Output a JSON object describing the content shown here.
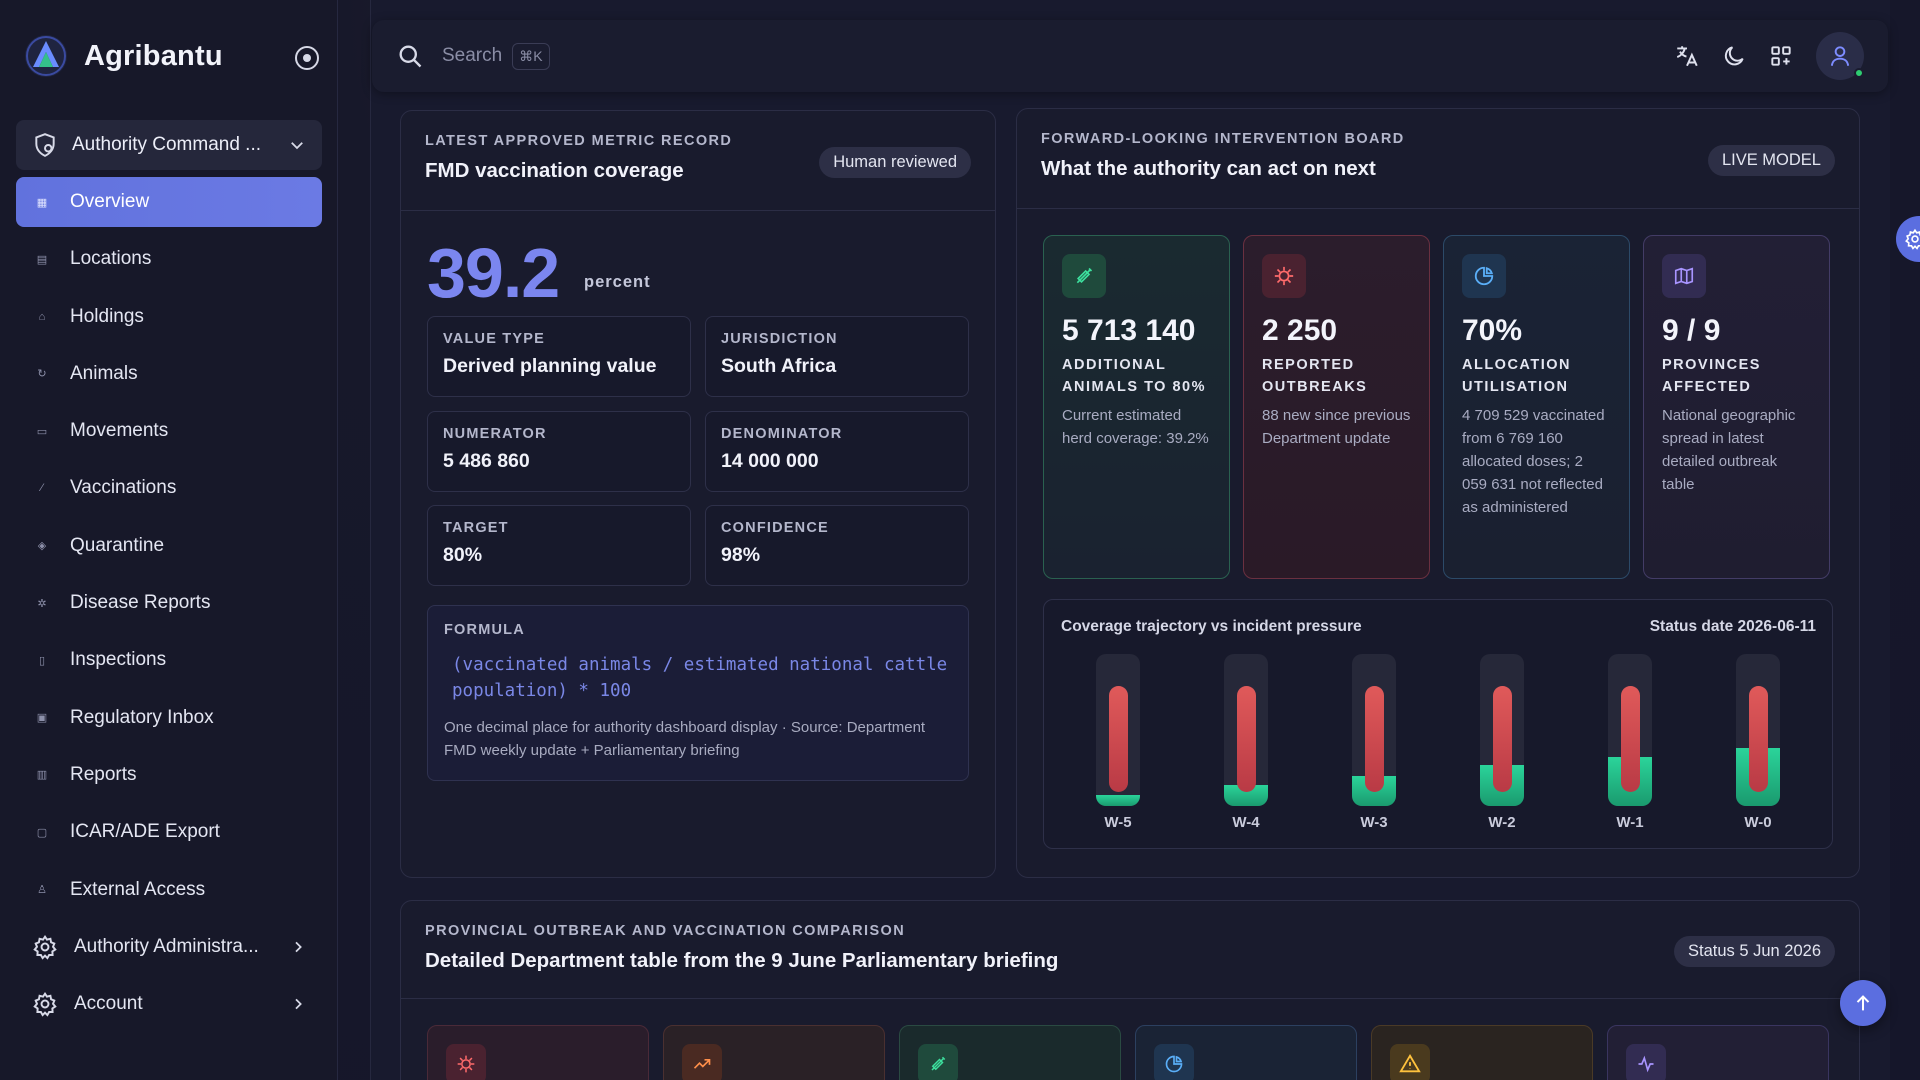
{
  "brand": {
    "name": "Agribantu"
  },
  "sidebar": {
    "command_select": "Authority Command ...",
    "items": [
      {
        "label": "Overview",
        "icon": "grid-icon",
        "active": true
      },
      {
        "label": "Locations",
        "icon": "map-icon"
      },
      {
        "label": "Holdings",
        "icon": "home-icon"
      },
      {
        "label": "Animals",
        "icon": "refresh-icon"
      },
      {
        "label": "Movements",
        "icon": "truck-icon"
      },
      {
        "label": "Vaccinations",
        "icon": "syringe-icon"
      },
      {
        "label": "Quarantine",
        "icon": "shield-icon"
      },
      {
        "label": "Disease Reports",
        "icon": "virus-icon"
      },
      {
        "label": "Inspections",
        "icon": "clipboard-icon"
      },
      {
        "label": "Regulatory Inbox",
        "icon": "inbox-icon"
      },
      {
        "label": "Reports",
        "icon": "bar-chart-icon"
      },
      {
        "label": "ICAR/ADE Export",
        "icon": "file-icon"
      },
      {
        "label": "External Access",
        "icon": "user-icon"
      }
    ],
    "groups": [
      {
        "label": "Authority Administra...",
        "icon": "gear-icon"
      },
      {
        "label": "Account",
        "icon": "gear-icon"
      }
    ]
  },
  "topbar": {
    "search_placeholder": "Search",
    "search_shortcut": "⌘K"
  },
  "metric": {
    "eyebrow": "LATEST APPROVED METRIC RECORD",
    "title": "FMD vaccination coverage",
    "badge": "Human reviewed",
    "value": "39.2",
    "unit": "percent",
    "fields": [
      {
        "k": "VALUE TYPE",
        "v": "Derived planning value"
      },
      {
        "k": "JURISDICTION",
        "v": "South Africa"
      },
      {
        "k": "NUMERATOR",
        "v": "5 486 860"
      },
      {
        "k": "DENOMINATOR",
        "v": "14 000 000"
      },
      {
        "k": "TARGET",
        "v": "80%"
      },
      {
        "k": "CONFIDENCE",
        "v": "98%"
      }
    ],
    "formula_label": "FORMULA",
    "formula": "(vaccinated animals / estimated national cattle population) * 100",
    "formula_note": "One decimal place for authority dashboard display · Source: Department FMD weekly update + Parliamentary briefing"
  },
  "board": {
    "eyebrow": "FORWARD-LOOKING INTERVENTION BOARD",
    "title": "What the authority can act on next",
    "badge": "LIVE MODEL",
    "tiles": [
      {
        "value": "5 713 140",
        "label": "ADDITIONAL ANIMALS TO 80%",
        "desc": "Current estimated herd coverage: 39.2%",
        "icon": "syringe-icon",
        "tone": "green"
      },
      {
        "value": "2 250",
        "label": "REPORTED OUTBREAKS",
        "desc": "88 new since previous Department update",
        "icon": "virus-icon",
        "tone": "red"
      },
      {
        "value": "70%",
        "label": "ALLOCATION UTILISATION",
        "desc": "4 709 529 vaccinated from 6 769 160 allocated doses; 2 059 631 not reflected as administered",
        "icon": "pie-chart-icon",
        "tone": "blue"
      },
      {
        "value": "9 / 9",
        "label": "PROVINCES AFFECTED",
        "desc": "National geographic spread in latest detailed outbreak table",
        "icon": "map-icon",
        "tone": "purple"
      }
    ]
  },
  "chart_data": {
    "type": "bar",
    "title": "Coverage trajectory vs incident pressure",
    "status": "Status date 2026-06-11",
    "categories": [
      "W-5",
      "W-4",
      "W-3",
      "W-2",
      "W-1",
      "W-0"
    ],
    "series": [
      {
        "values": [
          0.07,
          0.14,
          0.2,
          0.27,
          0.32,
          0.38
        ],
        "color": "#2bd49a"
      },
      {
        "values": [
          0.7,
          0.7,
          0.7,
          0.7,
          0.7,
          0.7
        ],
        "color": "#d94c55"
      }
    ],
    "ylim": [
      0,
      1
    ]
  },
  "comparison": {
    "eyebrow": "PROVINCIAL OUTBREAK AND VACCINATION COMPARISON",
    "title": "Detailed Department table from the 9 June Parliamentary briefing",
    "badge": "Status 5 Jun 2026",
    "tiles": [
      {
        "icon": "virus-icon",
        "tone": "red"
      },
      {
        "icon": "trending-up-icon",
        "tone": "orange"
      },
      {
        "icon": "syringe-icon",
        "tone": "green"
      },
      {
        "icon": "pie-chart-icon",
        "tone": "blue"
      },
      {
        "icon": "warning-icon",
        "tone": "amber"
      },
      {
        "icon": "activity-icon",
        "tone": "purple"
      }
    ]
  }
}
